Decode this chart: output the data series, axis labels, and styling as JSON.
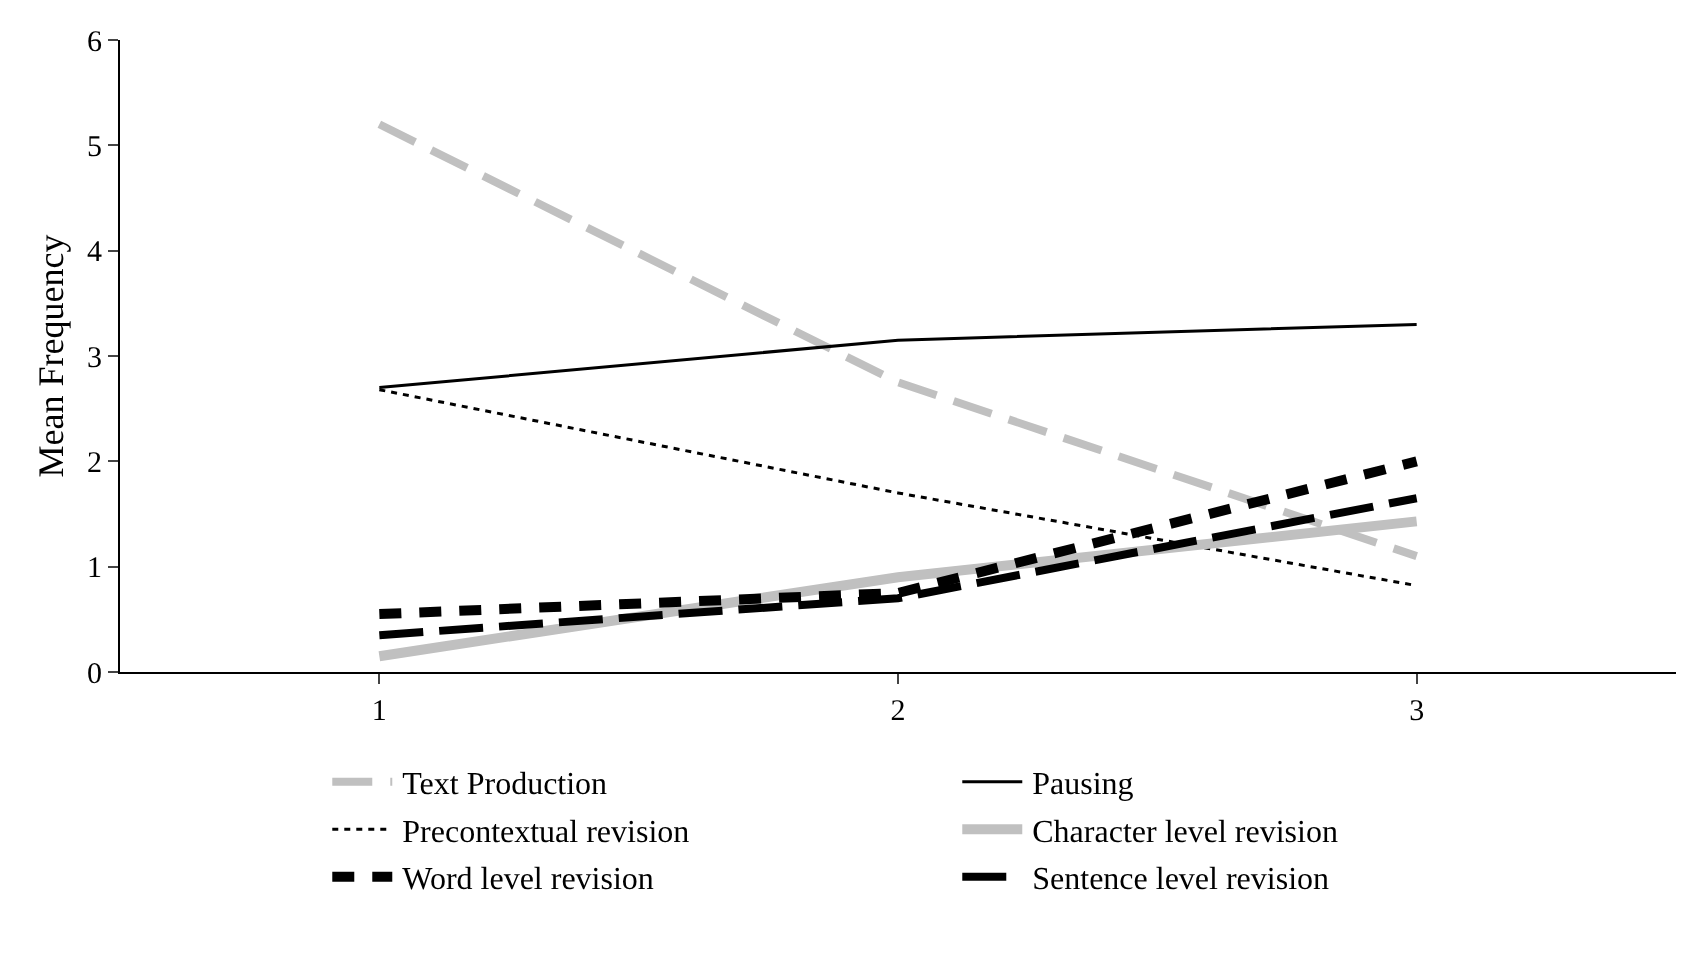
{
  "chart_data": {
    "type": "line",
    "ylabel": "Mean Frequency",
    "categories": [
      "1",
      "2",
      "3"
    ],
    "ylim": [
      0,
      6
    ],
    "yticks": [
      0,
      1,
      2,
      3,
      4,
      5,
      6
    ],
    "legend": "bottom",
    "marker": "none",
    "series": [
      {
        "name": "Text Production",
        "color": "#c0c0c0",
        "line_style": "dashed",
        "values": [
          5.2,
          2.75,
          1.1
        ]
      },
      {
        "name": "Pausing",
        "color": "#000000",
        "line_style": "solid",
        "values": [
          2.7,
          3.15,
          3.3
        ]
      },
      {
        "name": "Precontextual revision",
        "color": "#000000",
        "line_style": "dotted",
        "values": [
          2.68,
          1.7,
          0.82
        ]
      },
      {
        "name": "Character level revision",
        "color": "#c0c0c0",
        "line_style": "solid",
        "values": [
          0.15,
          0.9,
          1.43
        ]
      },
      {
        "name": "Word level revision",
        "color": "#000000",
        "line_style": "dashed",
        "values": [
          0.55,
          0.75,
          2.0
        ]
      },
      {
        "name": "Sentence level revision",
        "color": "#000000",
        "line_style": "dashed",
        "values": [
          0.35,
          0.7,
          1.65
        ]
      }
    ]
  }
}
